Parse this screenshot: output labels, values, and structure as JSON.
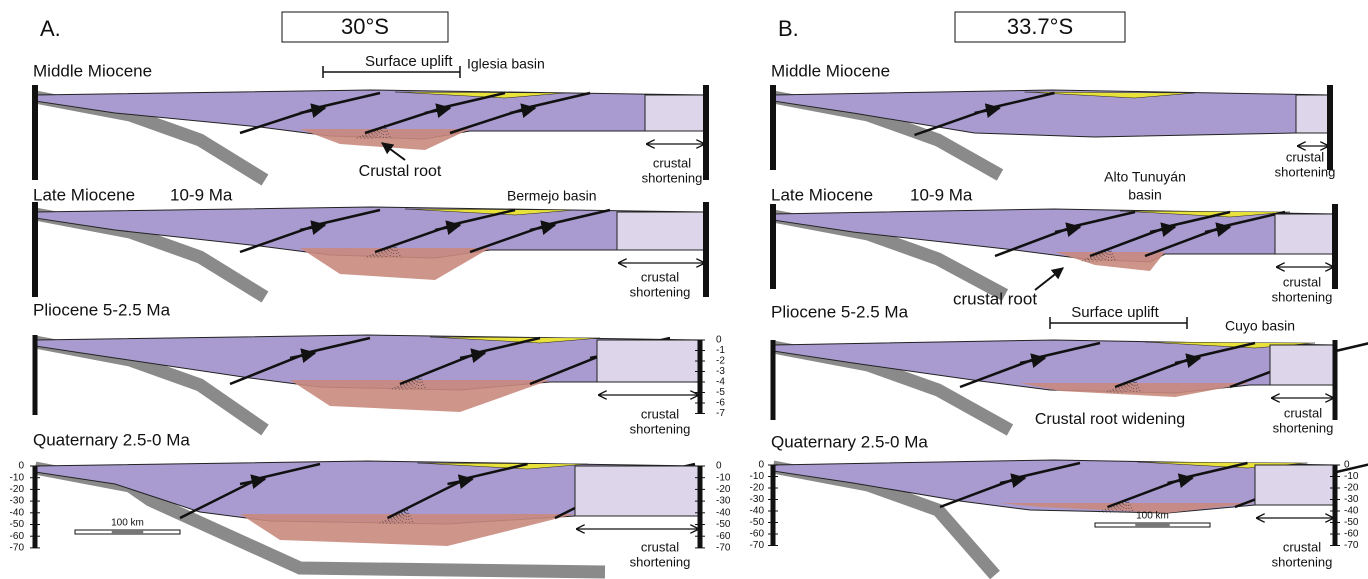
{
  "panels": [
    {
      "label": "A.",
      "latitude": "30°S",
      "stages": [
        {
          "title": "Middle Miocene",
          "notes": [
            "Surface uplift",
            "Iglesia basin",
            "Crustal root"
          ],
          "shortening": [
            "crustal",
            "shortening"
          ]
        },
        {
          "title": "Late Miocene",
          "age": "10-9  Ma",
          "notes": [
            "Bermejo basin"
          ],
          "shortening": [
            "crustal",
            "shortening"
          ]
        },
        {
          "title": "Pliocene 5-2.5 Ma",
          "notes": [],
          "shortening": [
            "crustal",
            "shortening"
          ],
          "right_scale": [
            "0",
            "-1",
            "-2",
            "-3",
            "-4",
            "-5",
            "-6",
            "-7"
          ]
        },
        {
          "title": "Quaternary 2.5-0 Ma",
          "notes": [],
          "shortening": [
            "crustal",
            "shortening"
          ],
          "left_scale": [
            "0",
            "-10",
            "-20",
            "-30",
            "-40",
            "-50",
            "-60",
            "-70"
          ],
          "right_scale": [
            "0",
            "-10",
            "-20",
            "-30",
            "-40",
            "-50",
            "-60",
            "-70"
          ],
          "scale_bar": "100 km"
        }
      ]
    },
    {
      "label": "B.",
      "latitude": "33.7°S",
      "stages": [
        {
          "title": "Middle Miocene",
          "notes": [],
          "shortening": [
            "crustal",
            "shortening"
          ]
        },
        {
          "title": "Late Miocene",
          "age": "10-9  Ma",
          "notes": [
            "Alto Tunuyán",
            "basin",
            "crustal root"
          ],
          "shortening": [
            "crustal",
            "shortening"
          ]
        },
        {
          "title": "Pliocene 5-2.5 Ma",
          "notes": [
            "Surface uplift",
            "Cuyo basin",
            "Crustal root widening"
          ],
          "shortening": [
            "crustal",
            "shortening"
          ]
        },
        {
          "title": "Quaternary 2.5-0 Ma",
          "notes": [],
          "shortening": [
            "crustal",
            "shortening"
          ],
          "left_scale": [
            "0",
            "-10",
            "-20",
            "-30",
            "-40",
            "-50",
            "-60",
            "-70"
          ],
          "right_scale": [
            "0",
            "-10",
            "-20",
            "-30",
            "-40",
            "-50",
            "-60",
            "-70"
          ],
          "scale_bar": "100 km"
        }
      ]
    }
  ]
}
